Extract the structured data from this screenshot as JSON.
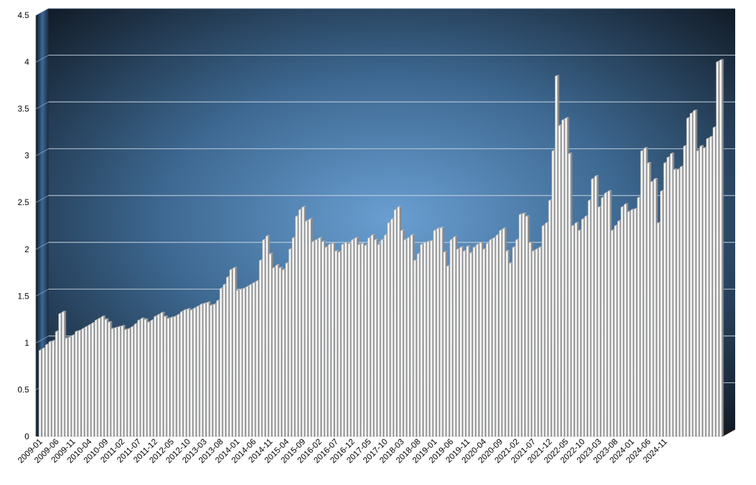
{
  "chart_data": {
    "type": "bar",
    "title": "",
    "xlabel": "",
    "ylabel": "",
    "ylim": [
      0,
      4.5
    ],
    "yticks": [
      "0",
      "0.5",
      "1",
      "1.5",
      "2",
      "2.5",
      "3",
      "3.5",
      "4",
      "4.5"
    ],
    "grid": true,
    "x_tick_labels": [
      "2009-01",
      "2009-06",
      "2009-11",
      "2010-04",
      "2010-09",
      "2011-02",
      "2011-07",
      "2011-12",
      "2012-05",
      "2012-10",
      "2013-03",
      "2013-08",
      "2014-01",
      "2014-06",
      "2014-11",
      "2015-04",
      "2015-09",
      "2016-02",
      "2016-07",
      "2016-12",
      "2017-05",
      "2017-10",
      "2018-03",
      "2018-08",
      "2019-01",
      "2019-06",
      "2019-11",
      "2020-04",
      "2020-09",
      "2021-02",
      "2021-07",
      "2021-12",
      "2022-05",
      "2022-10",
      "2023-03",
      "2023-08",
      "2024-01",
      "2024-06",
      "2024-11"
    ],
    "x_start": "2009-01",
    "values": [
      0.92,
      0.94,
      0.98,
      1.01,
      1.02,
      1.12,
      1.31,
      1.33,
      1.05,
      1.06,
      1.08,
      1.12,
      1.13,
      1.15,
      1.17,
      1.19,
      1.21,
      1.24,
      1.26,
      1.28,
      1.25,
      1.22,
      1.15,
      1.16,
      1.17,
      1.18,
      1.14,
      1.15,
      1.17,
      1.2,
      1.24,
      1.26,
      1.25,
      1.22,
      1.24,
      1.28,
      1.3,
      1.32,
      1.28,
      1.26,
      1.27,
      1.28,
      1.3,
      1.33,
      1.35,
      1.36,
      1.35,
      1.37,
      1.39,
      1.41,
      1.42,
      1.43,
      1.4,
      1.41,
      1.45,
      1.58,
      1.62,
      1.7,
      1.78,
      1.8,
      1.56,
      1.57,
      1.58,
      1.6,
      1.62,
      1.64,
      1.66,
      1.88,
      2.1,
      2.14,
      1.95,
      1.8,
      1.83,
      1.8,
      1.78,
      1.85,
      2.0,
      2.12,
      2.35,
      2.42,
      2.45,
      2.3,
      2.32,
      2.08,
      2.1,
      2.12,
      2.08,
      2.02,
      2.05,
      2.06,
      1.98,
      1.97,
      2.05,
      2.07,
      2.06,
      2.1,
      2.12,
      2.05,
      2.06,
      2.04,
      2.12,
      2.15,
      2.1,
      2.05,
      2.1,
      2.15,
      2.28,
      2.32,
      2.42,
      2.45,
      2.2,
      2.1,
      2.12,
      2.15,
      1.88,
      1.95,
      2.05,
      2.07,
      2.08,
      2.09,
      2.2,
      2.22,
      2.23,
      1.97,
      1.82,
      2.1,
      2.13,
      2.0,
      2.02,
      1.98,
      2.03,
      1.96,
      2.02,
      2.05,
      2.07,
      2.0,
      2.06,
      2.1,
      2.12,
      2.15,
      2.2,
      2.22,
      1.98,
      1.85,
      2.02,
      2.1,
      2.37,
      2.38,
      2.35,
      2.07,
      1.98,
      2.0,
      2.02,
      2.25,
      2.28,
      2.52,
      3.05,
      3.85,
      3.32,
      3.38,
      3.4,
      3.02,
      2.25,
      2.28,
      2.2,
      2.32,
      2.35,
      2.52,
      2.75,
      2.78,
      2.45,
      2.55,
      2.6,
      2.62,
      2.2,
      2.25,
      2.3,
      2.45,
      2.48,
      2.4,
      2.42,
      2.43,
      2.55,
      3.05,
      3.08,
      2.92,
      2.72,
      2.75,
      2.28,
      2.62,
      2.92,
      2.98,
      3.02,
      2.85,
      2.85,
      2.88,
      3.1,
      3.4,
      3.45,
      3.48,
      3.05,
      3.1,
      3.08,
      3.18,
      3.2,
      3.3,
      4.0,
      4.02
    ]
  }
}
